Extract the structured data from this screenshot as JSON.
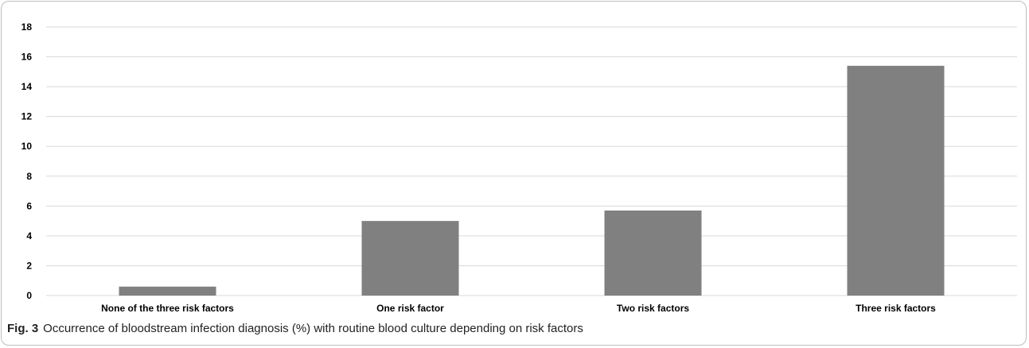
{
  "figure": {
    "label": "Fig. 3",
    "caption": "Occurrence of bloodstream infection diagnosis (%) with routine blood culture depending on risk factors"
  },
  "chart_data": {
    "type": "bar",
    "categories": [
      "None of the three risk factors",
      "One risk factor",
      "Two risk factors",
      "Three risk factors"
    ],
    "values": [
      0.6,
      5.0,
      5.7,
      15.4
    ],
    "title": "",
    "xlabel": "",
    "ylabel": "",
    "ylim": [
      0,
      18
    ],
    "yticks": [
      0,
      2,
      4,
      6,
      8,
      10,
      12,
      14,
      16,
      18
    ],
    "grid": true,
    "bar_color": "#808080",
    "grid_color": "#d9d9d9"
  }
}
